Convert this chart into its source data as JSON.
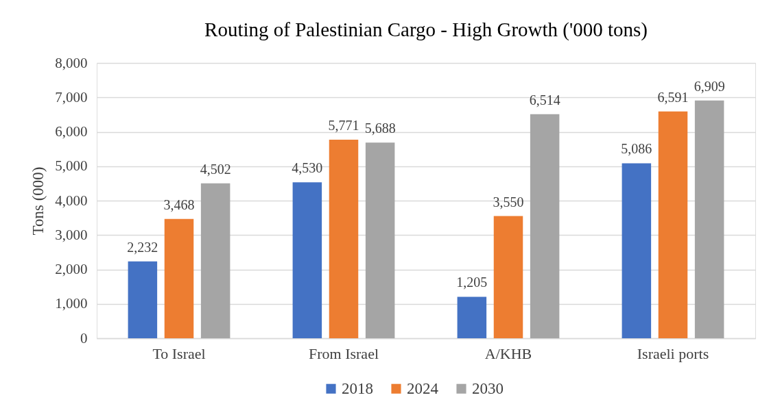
{
  "chart_data": {
    "type": "bar",
    "title": "Routing of Palestinian Cargo - High Growth ('000 tons)",
    "ylabel": "Tons (000)",
    "categories": [
      "To Israel",
      "From Israel",
      "A/KHB",
      "Israeli ports"
    ],
    "series": [
      {
        "name": "2018",
        "color": "#4472c4",
        "values": [
          2232,
          4530,
          1205,
          5086
        ],
        "value_labels": [
          "2,232",
          "4,530",
          "1,205",
          "5,086"
        ]
      },
      {
        "name": "2024",
        "color": "#ed7d31",
        "values": [
          3468,
          5771,
          3550,
          6591
        ],
        "value_labels": [
          "3,468",
          "5,771",
          "3,550",
          "6,591"
        ]
      },
      {
        "name": "2030",
        "color": "#a5a5a5",
        "values": [
          4502,
          5688,
          6514,
          6909
        ],
        "value_labels": [
          "4,502",
          "5,688",
          "6,514",
          "6,909"
        ]
      }
    ],
    "ylim": [
      0,
      8000
    ],
    "yticks": [
      0,
      {
        "value": 1000,
        "label": "1,000"
      },
      {
        "value": 2000,
        "label": "2,000"
      },
      {
        "value": 3000,
        "label": "3,000"
      },
      {
        "value": 4000,
        "label": "4,000"
      },
      {
        "value": 5000,
        "label": "5,000"
      },
      {
        "value": 6000,
        "label": "6,000"
      },
      {
        "value": 7000,
        "label": "7,000"
      },
      {
        "value": 8000,
        "label": "8,000"
      }
    ],
    "grid": "y",
    "legend": "bottom"
  }
}
